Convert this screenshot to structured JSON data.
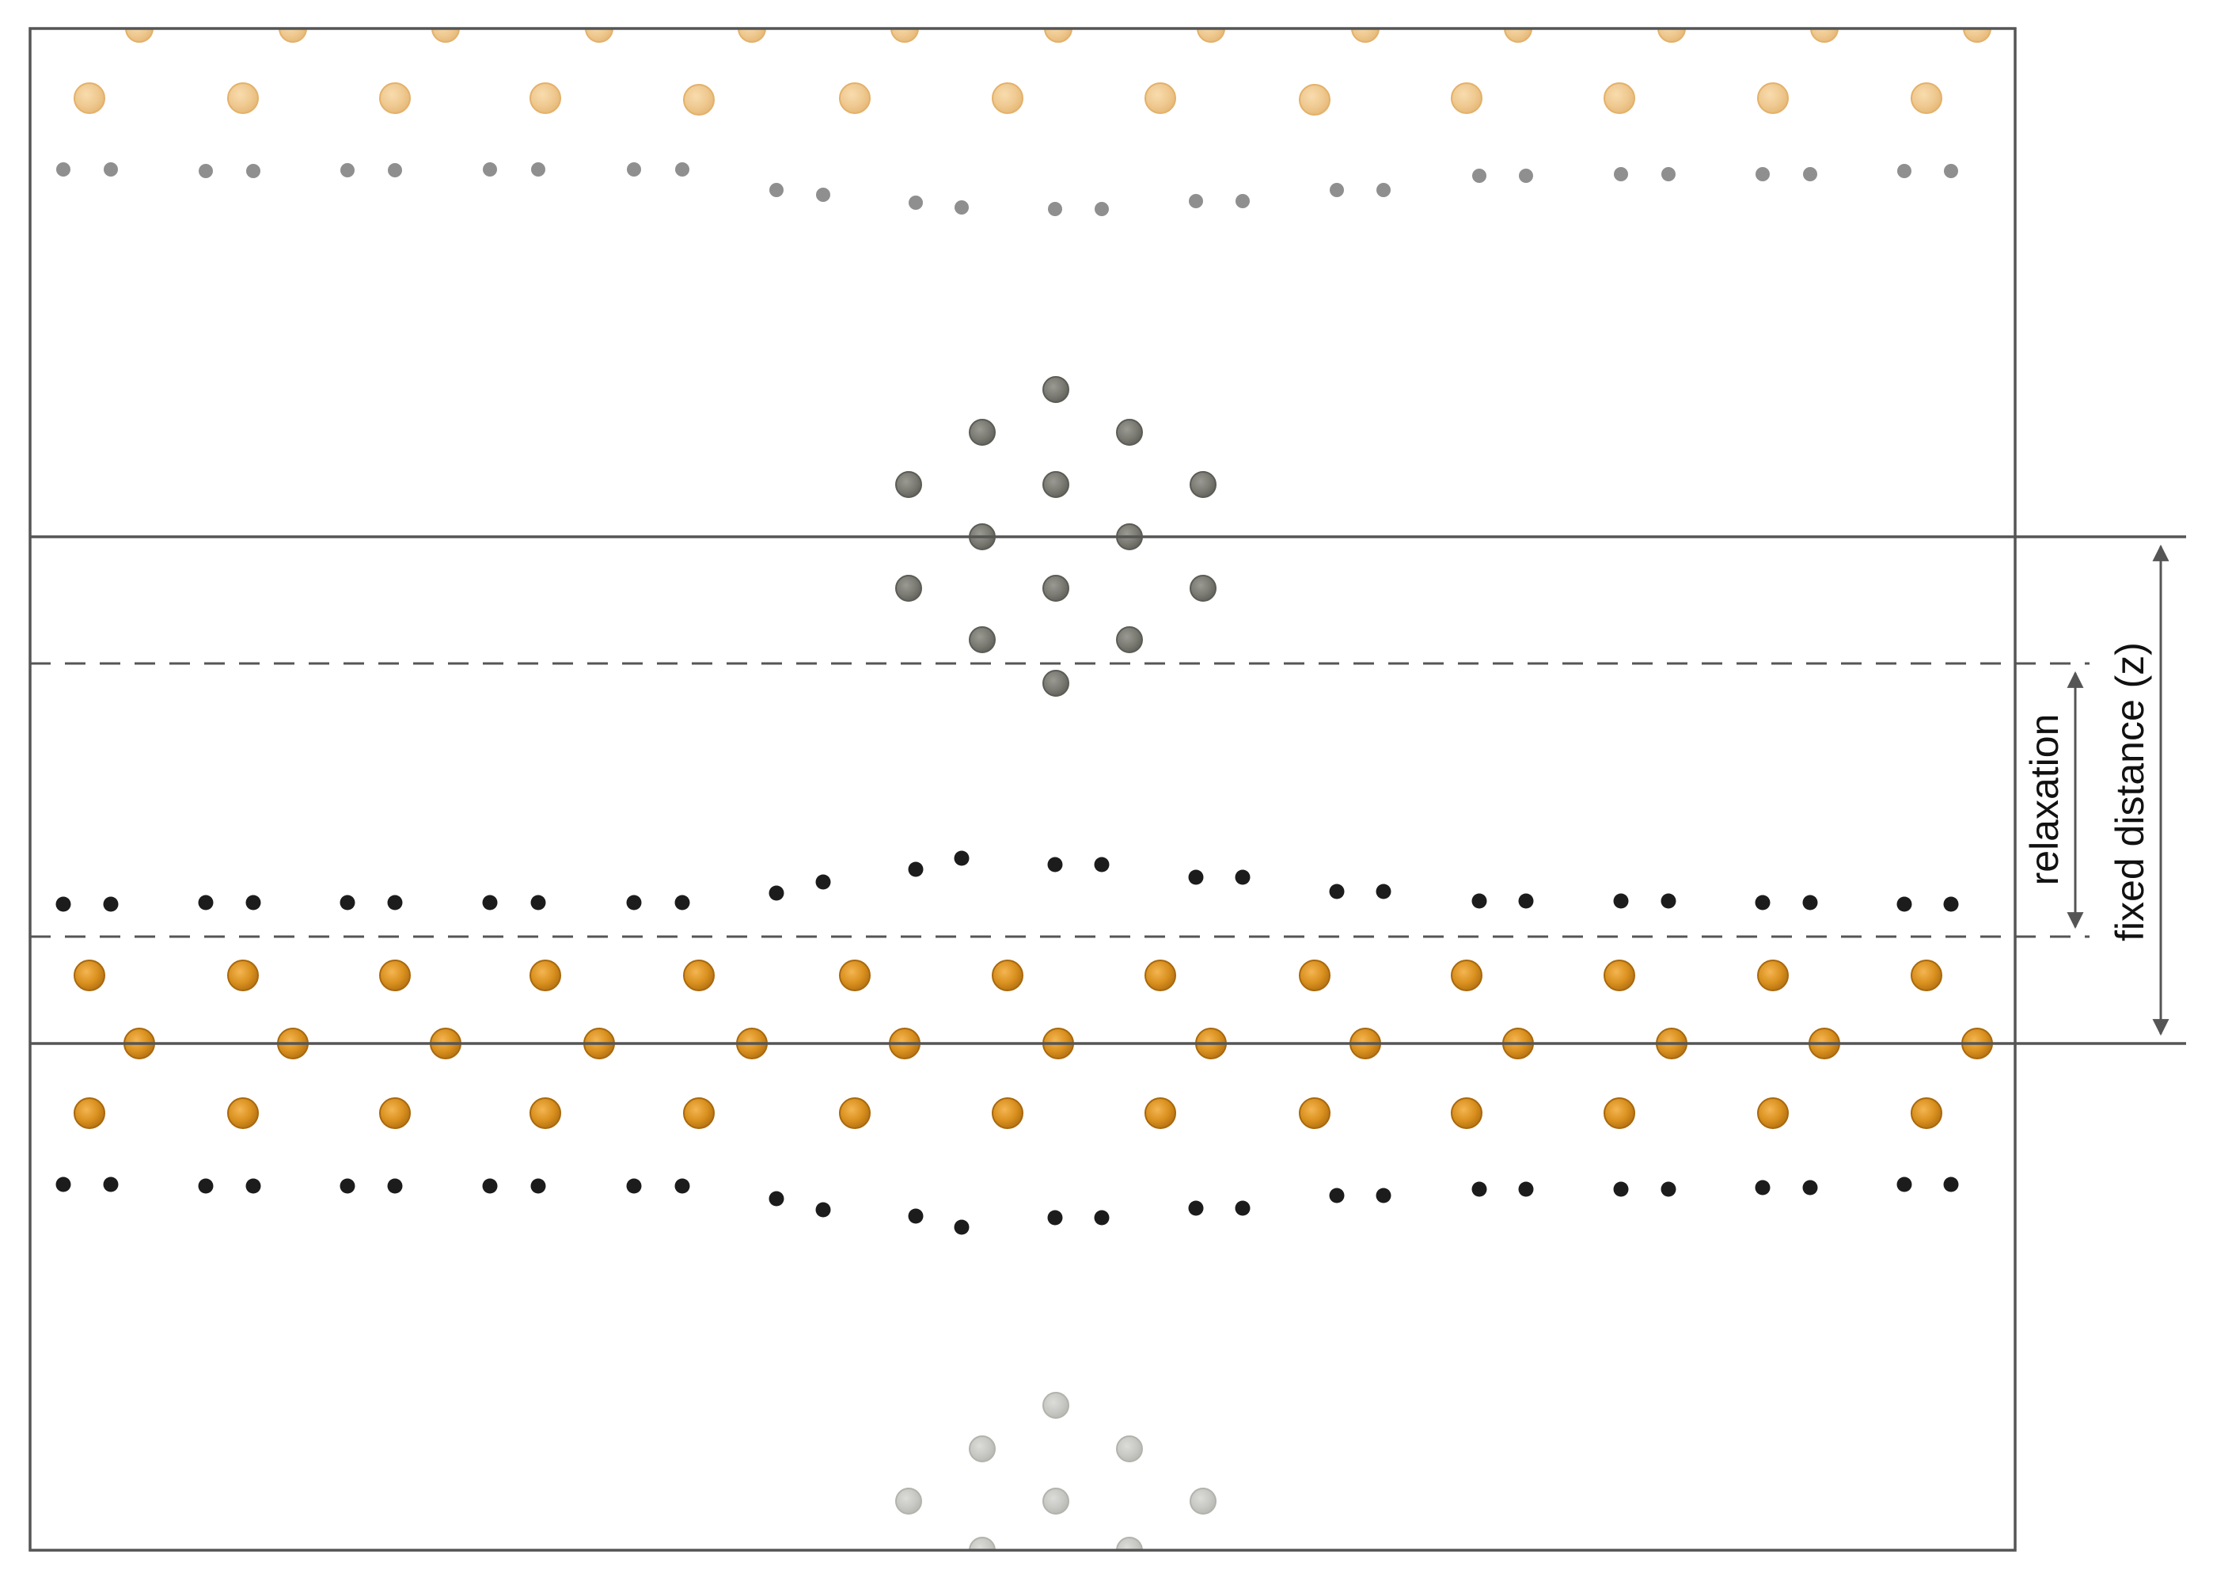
{
  "labels": {
    "relaxation": "relaxation",
    "fixed_distance": "fixed distance (z)"
  },
  "colors": {
    "box_line": "#555555",
    "dashed_line": "#555555",
    "arrow": "#555555",
    "label_text": "#111111",
    "metal_atom": "#d9901e",
    "metal_atom_edge": "#a8680c",
    "metal_atom_faded": "#efc990",
    "metal_atom_faded_edge": "#e3b16a",
    "small_atom_dark": "#1c1c1c",
    "small_atom_faded": "#8f8f8f",
    "molecule_atom": "#7b7b74",
    "molecule_atom_edge": "#5c5c56",
    "molecule_atom_faded": "#c8c8c4",
    "molecule_atom_faded_edge": "#b3b3ae"
  }
}
